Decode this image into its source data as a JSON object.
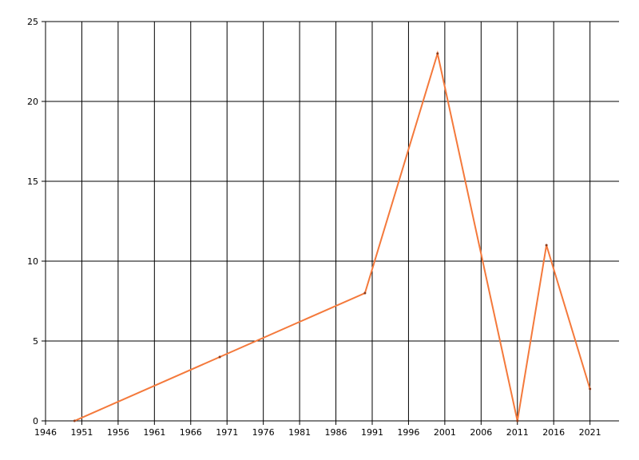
{
  "chart_data": {
    "type": "line",
    "x": [
      1950,
      1970,
      1990,
      2000,
      2011,
      2015,
      2021
    ],
    "series": [
      {
        "color": "#f4793b",
        "values": [
          0,
          4,
          8,
          23,
          0,
          11,
          2
        ]
      }
    ],
    "xlim": [
      1946,
      2025
    ],
    "xticks": [
      1946,
      1951,
      1956,
      1961,
      1966,
      1971,
      1976,
      1981,
      1986,
      1991,
      1996,
      2001,
      2006,
      2011,
      2016,
      2021
    ],
    "ylim": [
      0,
      25
    ],
    "yticks": [
      0,
      5,
      10,
      15,
      20,
      25
    ],
    "grid": true
  }
}
